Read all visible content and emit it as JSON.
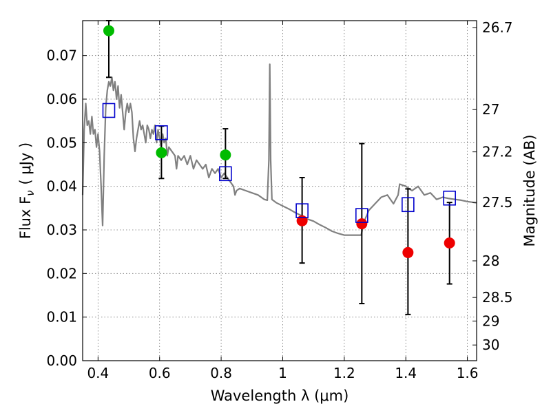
{
  "chart_data": {
    "type": "scatter",
    "xlabel": "Wavelength  λ (μm)",
    "ylabel": "Flux  F",
    "ylabel_sub": "ν",
    "ylabel_unit": "( μJy )",
    "y2label": "Magnitude (AB)",
    "xlim": [
      0.35,
      1.63
    ],
    "ylim": [
      0.0,
      0.078
    ],
    "grid": true,
    "x_ticks": [
      {
        "value": 0.4,
        "label": "0.4"
      },
      {
        "value": 0.6,
        "label": "0.6"
      },
      {
        "value": 0.8,
        "label": "0.8"
      },
      {
        "value": 1.0,
        "label": "1"
      },
      {
        "value": 1.2,
        "label": "1.2"
      },
      {
        "value": 1.4,
        "label": "1.4"
      },
      {
        "value": 1.6,
        "label": "1.6"
      }
    ],
    "y_ticks": [
      {
        "value": 0.0,
        "label": "0.00"
      },
      {
        "value": 0.01,
        "label": "0.01"
      },
      {
        "value": 0.02,
        "label": "0.02"
      },
      {
        "value": 0.03,
        "label": "0.03"
      },
      {
        "value": 0.04,
        "label": "0.04"
      },
      {
        "value": 0.05,
        "label": "0.05"
      },
      {
        "value": 0.06,
        "label": "0.06"
      },
      {
        "value": 0.07,
        "label": "0.07"
      }
    ],
    "y2_ticks": [
      {
        "flux": 0.0764,
        "label": "26.7"
      },
      {
        "flux": 0.0576,
        "label": "27"
      },
      {
        "flux": 0.0479,
        "label": "27.2"
      },
      {
        "flux": 0.0363,
        "label": "27.5"
      },
      {
        "flux": 0.0229,
        "label": "28"
      },
      {
        "flux": 0.0145,
        "label": "28.5"
      },
      {
        "flux": 0.0091,
        "label": "29"
      },
      {
        "flux": 0.0036,
        "label": "30"
      }
    ],
    "colors": {
      "spectrum": "#808080",
      "detection": "#00bb00",
      "nondetection": "#ee0000",
      "model": "#0000cc",
      "errorbar": "#000000"
    },
    "spectrum": [
      [
        0.35,
        0.038
      ],
      [
        0.355,
        0.053
      ],
      [
        0.36,
        0.059
      ],
      [
        0.365,
        0.054
      ],
      [
        0.37,
        0.055
      ],
      [
        0.375,
        0.052
      ],
      [
        0.38,
        0.056
      ],
      [
        0.385,
        0.052
      ],
      [
        0.39,
        0.053
      ],
      [
        0.395,
        0.049
      ],
      [
        0.4,
        0.052
      ],
      [
        0.405,
        0.048
      ],
      [
        0.41,
        0.04
      ],
      [
        0.415,
        0.031
      ],
      [
        0.42,
        0.047
      ],
      [
        0.425,
        0.058
      ],
      [
        0.43,
        0.062
      ],
      [
        0.435,
        0.064
      ],
      [
        0.44,
        0.063
      ],
      [
        0.445,
        0.065
      ],
      [
        0.45,
        0.062
      ],
      [
        0.455,
        0.064
      ],
      [
        0.46,
        0.06
      ],
      [
        0.465,
        0.063
      ],
      [
        0.47,
        0.058
      ],
      [
        0.475,
        0.061
      ],
      [
        0.48,
        0.057
      ],
      [
        0.485,
        0.053
      ],
      [
        0.49,
        0.057
      ],
      [
        0.495,
        0.059
      ],
      [
        0.5,
        0.057
      ],
      [
        0.505,
        0.059
      ],
      [
        0.51,
        0.057
      ],
      [
        0.515,
        0.051
      ],
      [
        0.52,
        0.048
      ],
      [
        0.525,
        0.051
      ],
      [
        0.53,
        0.053
      ],
      [
        0.535,
        0.055
      ],
      [
        0.54,
        0.053
      ],
      [
        0.545,
        0.054
      ],
      [
        0.55,
        0.052
      ],
      [
        0.555,
        0.05
      ],
      [
        0.56,
        0.054
      ],
      [
        0.565,
        0.053
      ],
      [
        0.57,
        0.051
      ],
      [
        0.575,
        0.053
      ],
      [
        0.58,
        0.052
      ],
      [
        0.585,
        0.054
      ],
      [
        0.59,
        0.05
      ],
      [
        0.595,
        0.053
      ],
      [
        0.6,
        0.051
      ],
      [
        0.605,
        0.049
      ],
      [
        0.61,
        0.052
      ],
      [
        0.615,
        0.05
      ],
      [
        0.62,
        0.051
      ],
      [
        0.625,
        0.047
      ],
      [
        0.63,
        0.049
      ],
      [
        0.64,
        0.048
      ],
      [
        0.65,
        0.047
      ],
      [
        0.655,
        0.044
      ],
      [
        0.66,
        0.047
      ],
      [
        0.67,
        0.046
      ],
      [
        0.68,
        0.047
      ],
      [
        0.69,
        0.045
      ],
      [
        0.7,
        0.047
      ],
      [
        0.71,
        0.044
      ],
      [
        0.72,
        0.046
      ],
      [
        0.73,
        0.045
      ],
      [
        0.74,
        0.044
      ],
      [
        0.75,
        0.045
      ],
      [
        0.76,
        0.042
      ],
      [
        0.77,
        0.044
      ],
      [
        0.78,
        0.043
      ],
      [
        0.79,
        0.044
      ],
      [
        0.8,
        0.042
      ],
      [
        0.81,
        0.043
      ],
      [
        0.82,
        0.042
      ],
      [
        0.83,
        0.041
      ],
      [
        0.84,
        0.04
      ],
      [
        0.845,
        0.038
      ],
      [
        0.85,
        0.039
      ],
      [
        0.86,
        0.0395
      ],
      [
        0.88,
        0.039
      ],
      [
        0.9,
        0.0385
      ],
      [
        0.92,
        0.038
      ],
      [
        0.94,
        0.037
      ],
      [
        0.95,
        0.0368
      ],
      [
        0.955,
        0.046
      ],
      [
        0.958,
        0.068
      ],
      [
        0.961,
        0.046
      ],
      [
        0.965,
        0.037
      ],
      [
        0.98,
        0.0362
      ],
      [
        1.0,
        0.0355
      ],
      [
        1.02,
        0.0348
      ],
      [
        1.04,
        0.034
      ],
      [
        1.06,
        0.0333
      ],
      [
        1.08,
        0.0325
      ],
      [
        1.1,
        0.032
      ],
      [
        1.12,
        0.0312
      ],
      [
        1.14,
        0.0305
      ],
      [
        1.16,
        0.0297
      ],
      [
        1.18,
        0.0292
      ],
      [
        1.2,
        0.0288
      ],
      [
        1.22,
        0.0288
      ],
      [
        1.24,
        0.0288
      ],
      [
        1.255,
        0.0288
      ],
      [
        1.265,
        0.032
      ],
      [
        1.28,
        0.0345
      ],
      [
        1.3,
        0.036
      ],
      [
        1.32,
        0.0375
      ],
      [
        1.34,
        0.038
      ],
      [
        1.36,
        0.036
      ],
      [
        1.375,
        0.038
      ],
      [
        1.38,
        0.0405
      ],
      [
        1.4,
        0.04
      ],
      [
        1.42,
        0.039
      ],
      [
        1.44,
        0.04
      ],
      [
        1.46,
        0.038
      ],
      [
        1.48,
        0.0385
      ],
      [
        1.5,
        0.037
      ],
      [
        1.52,
        0.0375
      ],
      [
        1.54,
        0.0372
      ],
      [
        1.56,
        0.037
      ],
      [
        1.58,
        0.0368
      ],
      [
        1.6,
        0.0365
      ],
      [
        1.63,
        0.0362
      ]
    ],
    "detections": [
      {
        "x": 0.435,
        "y": 0.0757,
        "yerr_low": 0.065,
        "yerr_high": 0.078
      },
      {
        "x": 0.606,
        "y": 0.0477,
        "yerr_low": 0.0418,
        "yerr_high": 0.0538
      },
      {
        "x": 0.814,
        "y": 0.0472,
        "yerr_low": 0.0418,
        "yerr_high": 0.0532
      }
    ],
    "nondetections": [
      {
        "x": 1.063,
        "y": 0.0321,
        "yerr_low": 0.0224,
        "yerr_high": 0.042
      },
      {
        "x": 1.257,
        "y": 0.0314,
        "yerr_low": 0.0131,
        "yerr_high": 0.0498
      },
      {
        "x": 1.407,
        "y": 0.0248,
        "yerr_low": 0.0106,
        "yerr_high": 0.0394
      },
      {
        "x": 1.542,
        "y": 0.027,
        "yerr_low": 0.0176,
        "yerr_high": 0.0363
      }
    ],
    "model_points": [
      {
        "x": 0.435,
        "y": 0.0574
      },
      {
        "x": 0.606,
        "y": 0.0523
      },
      {
        "x": 0.814,
        "y": 0.0429
      },
      {
        "x": 1.063,
        "y": 0.0344
      },
      {
        "x": 1.257,
        "y": 0.0333
      },
      {
        "x": 1.407,
        "y": 0.0358
      },
      {
        "x": 1.542,
        "y": 0.0373
      }
    ]
  }
}
